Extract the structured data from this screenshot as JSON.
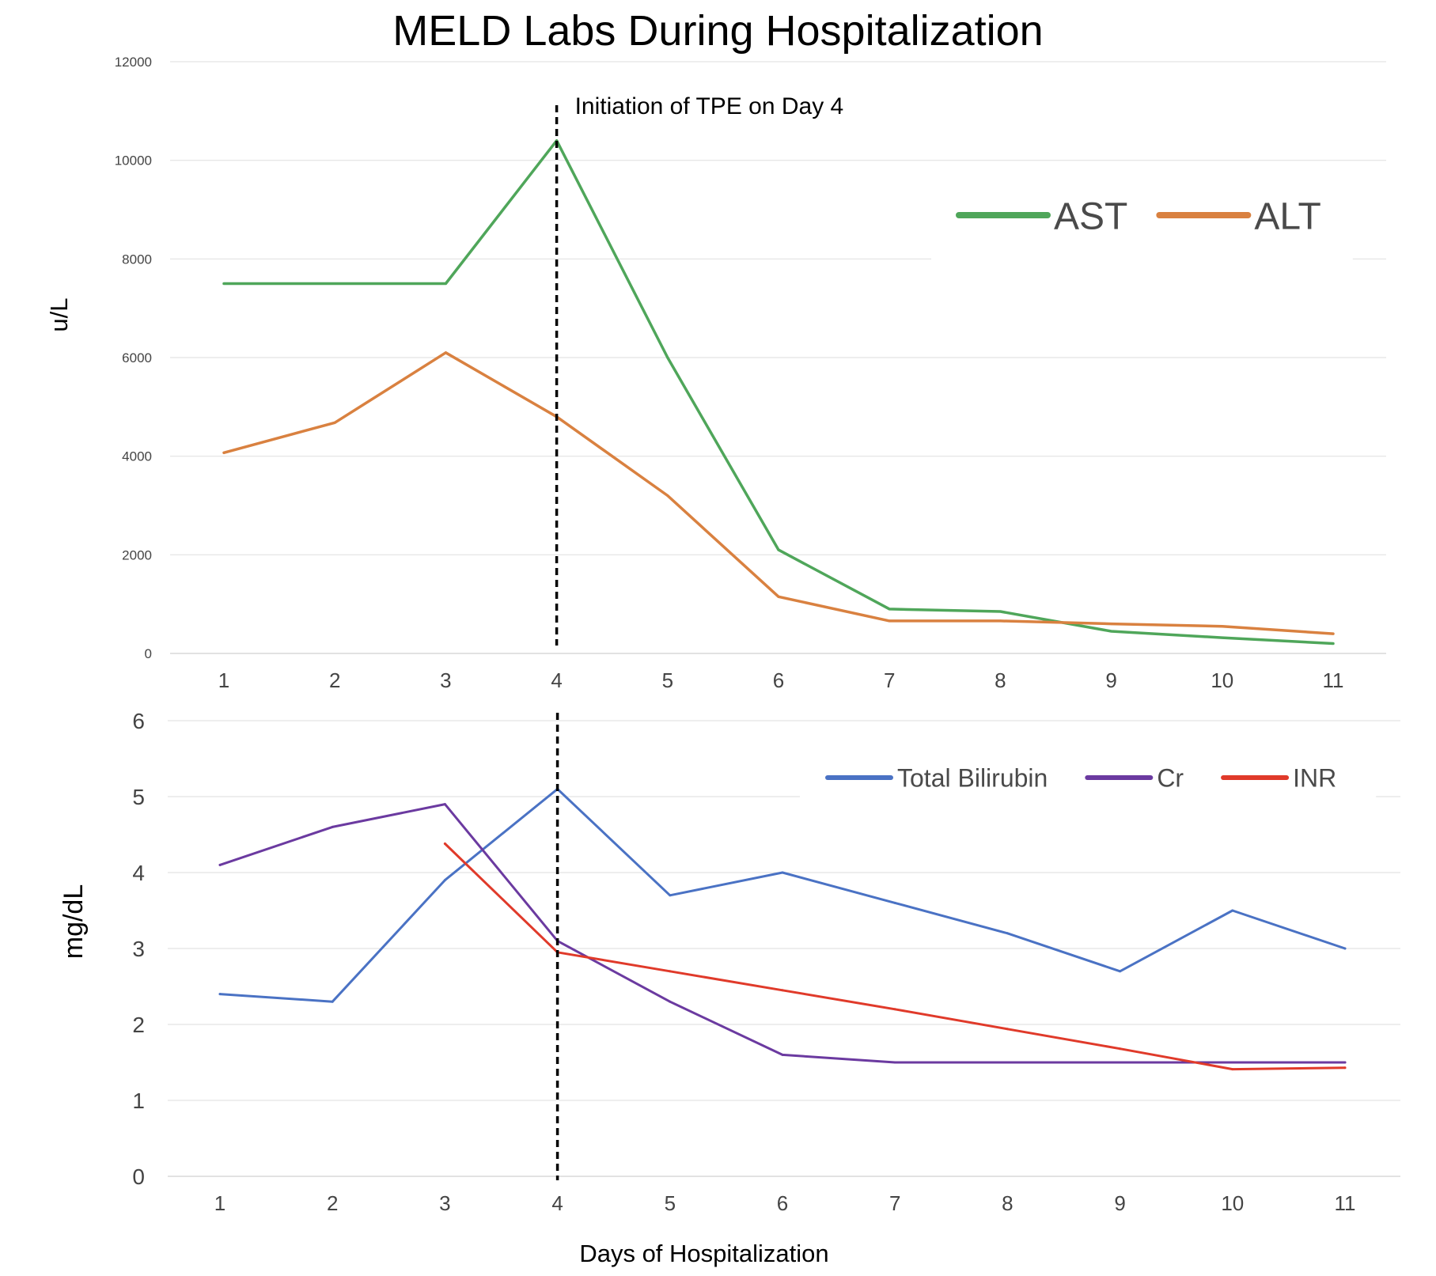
{
  "title": "MELD Labs During Hospitalization",
  "annotation": "Initiation of TPE on Day 4",
  "xlabel": "Days of Hospitalization",
  "chart_data": [
    {
      "type": "line",
      "ylabel": "u/L",
      "x": [
        1,
        2,
        3,
        4,
        5,
        6,
        7,
        8,
        9,
        10,
        11
      ],
      "ylim": [
        0,
        12000
      ],
      "yticks": [
        0,
        2000,
        4000,
        6000,
        8000,
        10000,
        12000
      ],
      "grid": true,
      "legend_position": "top-right",
      "vline": {
        "x": 4,
        "label": "Initiation of TPE on Day 4"
      },
      "series": [
        {
          "name": "AST",
          "color": "#4fa65a",
          "values": [
            7500,
            7500,
            7500,
            10400,
            6000,
            2100,
            900,
            850,
            450,
            320,
            200
          ]
        },
        {
          "name": "ALT",
          "color": "#d98140",
          "values": [
            4070,
            4680,
            6100,
            4800,
            3200,
            1150,
            660,
            660,
            600,
            550,
            400
          ]
        }
      ]
    },
    {
      "type": "line",
      "ylabel": "mg/dL",
      "x": [
        1,
        2,
        3,
        4,
        5,
        6,
        7,
        8,
        9,
        10,
        11
      ],
      "ylim": [
        0,
        6
      ],
      "yticks": [
        0,
        1,
        2,
        3,
        4,
        5,
        6
      ],
      "grid": true,
      "legend_position": "top-right",
      "vline": {
        "x": 4
      },
      "series": [
        {
          "name": "Total Bilirubin",
          "color": "#4a72c4",
          "values": [
            2.4,
            2.3,
            3.9,
            5.1,
            3.7,
            4.0,
            3.6,
            3.2,
            2.7,
            3.5,
            3.0
          ]
        },
        {
          "name": "Cr",
          "color": "#6b3aa0",
          "values": [
            4.1,
            4.6,
            4.9,
            3.1,
            2.3,
            1.6,
            1.5,
            1.5,
            1.5,
            1.5,
            1.5
          ]
        },
        {
          "name": "INR",
          "color": "#e03a2a",
          "values": [
            null,
            null,
            4.38,
            2.95,
            2.7,
            2.45,
            2.2,
            1.94,
            1.68,
            1.41,
            1.43
          ]
        }
      ]
    }
  ]
}
